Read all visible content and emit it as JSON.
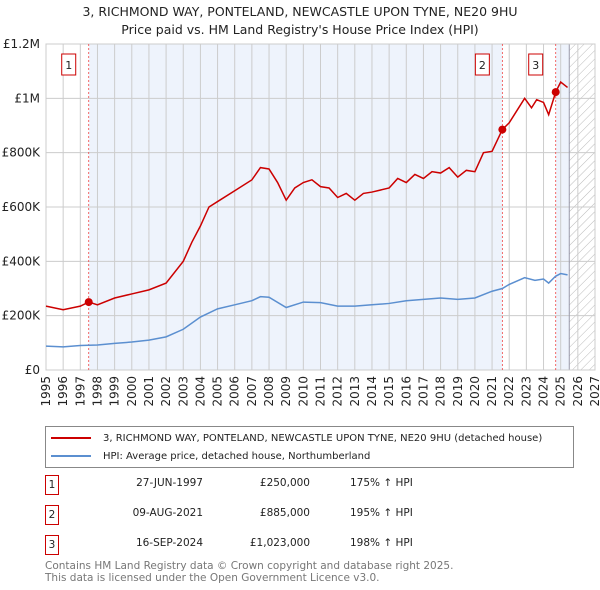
{
  "chart_data": {
    "type": "line",
    "title": "3, RICHMOND WAY, PONTELAND, NEWCASTLE UPON TYNE, NE20 9HU",
    "subtitle": "Price paid vs. HM Land Registry's House Price Index (HPI)",
    "xlim": [
      1995,
      2027
    ],
    "ylim": [
      0,
      1200000
    ],
    "x_ticks": [
      "1995",
      "1996",
      "1997",
      "1998",
      "1999",
      "2000",
      "2001",
      "2002",
      "2003",
      "2004",
      "2005",
      "2006",
      "2007",
      "2008",
      "2009",
      "2010",
      "2011",
      "2012",
      "2013",
      "2014",
      "2015",
      "2016",
      "2017",
      "2018",
      "2019",
      "2020",
      "2021",
      "2022",
      "2023",
      "2024",
      "2025",
      "2026",
      "2027"
    ],
    "y_ticks": [
      {
        "v": 0,
        "label": "£0"
      },
      {
        "v": 200000,
        "label": "£200K"
      },
      {
        "v": 400000,
        "label": "£400K"
      },
      {
        "v": 600000,
        "label": "£600K"
      },
      {
        "v": 800000,
        "label": "£800K"
      },
      {
        "v": 1000000,
        "label": "£1M"
      },
      {
        "v": 1200000,
        "label": "£1.2M"
      }
    ],
    "grid": true,
    "forecast_start": 2025.5,
    "series": [
      {
        "name": "3, RICHMOND WAY, PONTELAND, NEWCASTLE UPON TYNE, NE20 9HU (detached house)",
        "color": "#cc0000",
        "x": [
          1995,
          1996,
          1997,
          1997.49,
          1998,
          1999,
          2000,
          2001,
          2002,
          2003,
          2003.5,
          2004,
          2004.5,
          2005,
          2006,
          2007,
          2007.5,
          2008,
          2008.5,
          2009,
          2009.5,
          2010,
          2010.5,
          2011,
          2011.5,
          2012,
          2012.5,
          2013,
          2013.5,
          2014,
          2015,
          2015.5,
          2016,
          2016.5,
          2017,
          2017.5,
          2018,
          2018.5,
          2019,
          2019.5,
          2020,
          2020.5,
          2021,
          2021.6,
          2022,
          2022.5,
          2022.9,
          2023.3,
          2023.6,
          2024,
          2024.3,
          2024.71,
          2025,
          2025.4
        ],
        "y": [
          235000,
          222000,
          235000,
          250000,
          240000,
          265000,
          280000,
          295000,
          320000,
          400000,
          470000,
          530000,
          600000,
          620000,
          660000,
          700000,
          745000,
          740000,
          690000,
          625000,
          670000,
          690000,
          700000,
          675000,
          670000,
          635000,
          650000,
          625000,
          650000,
          655000,
          670000,
          705000,
          690000,
          720000,
          705000,
          730000,
          725000,
          745000,
          710000,
          735000,
          730000,
          800000,
          805000,
          885000,
          910000,
          960000,
          1000000,
          965000,
          995000,
          985000,
          940000,
          1023000,
          1060000,
          1040000
        ]
      },
      {
        "name": "HPI: Average price, detached house, Northumberland",
        "color": "#5b8fd0",
        "x": [
          1995,
          1996,
          1997,
          1998,
          1999,
          2000,
          2001,
          2002,
          2003,
          2004,
          2005,
          2006,
          2007,
          2007.5,
          2008,
          2009,
          2010,
          2011,
          2012,
          2013,
          2014,
          2015,
          2016,
          2017,
          2018,
          2019,
          2020,
          2021,
          2021.6,
          2022,
          2022.9,
          2023.5,
          2024,
          2024.3,
          2024.7,
          2025,
          2025.4
        ],
        "y": [
          88000,
          85000,
          90000,
          92000,
          98000,
          103000,
          110000,
          122000,
          150000,
          195000,
          225000,
          240000,
          255000,
          270000,
          268000,
          230000,
          250000,
          248000,
          235000,
          235000,
          240000,
          245000,
          255000,
          260000,
          265000,
          260000,
          265000,
          290000,
          300000,
          315000,
          340000,
          330000,
          335000,
          320000,
          345000,
          355000,
          350000
        ]
      }
    ],
    "sales": [
      {
        "n": "1",
        "x": 1997.49,
        "price_value": 250000,
        "date": "27-JUN-1997",
        "price": "£250,000",
        "hpi": "175% ↑ HPI"
      },
      {
        "n": "2",
        "x": 2021.6,
        "price_value": 885000,
        "date": "09-AUG-2021",
        "price": "£885,000",
        "hpi": "195% ↑ HPI"
      },
      {
        "n": "3",
        "x": 2024.71,
        "price_value": 1023000,
        "date": "16-SEP-2024",
        "price": "£1,023,000",
        "hpi": "198% ↑ HPI"
      }
    ]
  },
  "footer": {
    "line1": "Contains HM Land Registry data © Crown copyright and database right 2025.",
    "line2": "This data is licensed under the Open Government Licence v3.0."
  }
}
